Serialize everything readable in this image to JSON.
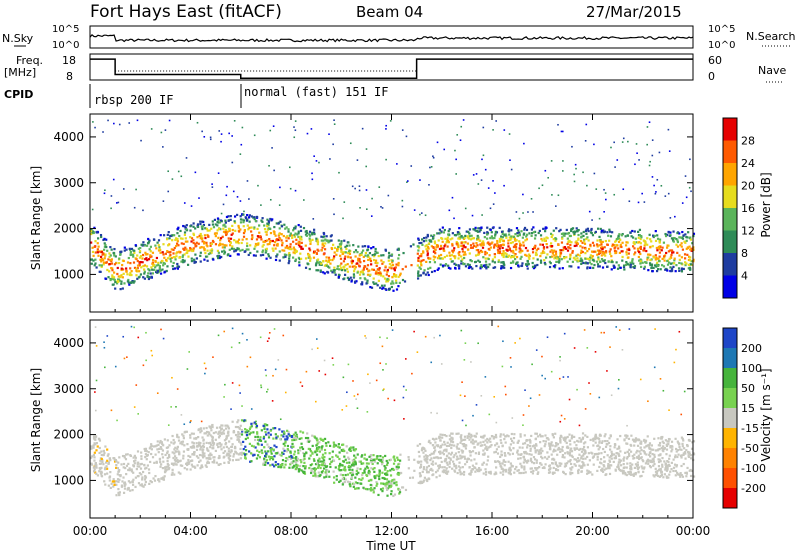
{
  "header": {
    "station": "Fort Hays East (fitACF)",
    "beam": "Beam 04",
    "date": "27/Mar/2015"
  },
  "noise_panel": {
    "left_label": "N.Sky",
    "right_label": "N.Search",
    "left_ticks": [
      "10^5",
      "10^0"
    ],
    "right_ticks": [
      "10^5",
      "10^0"
    ]
  },
  "freq_panel": {
    "left_label_1": "Freq.",
    "left_label_2": "[MHz]",
    "right_label": "Nave",
    "left_ticks": [
      "18",
      "8"
    ],
    "right_ticks": [
      "60",
      "0"
    ]
  },
  "cpid_panel": {
    "label": "CPID",
    "modes": [
      {
        "name": "rbsp 200 IF",
        "start_hour": 0
      },
      {
        "name": "normal (fast) 151 IF",
        "start_hour": 6
      }
    ]
  },
  "power_panel": {
    "ylabel": "Slant Range [km]",
    "colorbar_label": "Power [dB]",
    "colorbar_ticks": [
      "28",
      "24",
      "20",
      "16",
      "12",
      "8",
      "4"
    ],
    "colorbar_colors": [
      "#e60000",
      "#ff5a00",
      "#ffa500",
      "#e6dc1e",
      "#5ab45a",
      "#2e8b57",
      "#1e3ca0",
      "#0000e6"
    ]
  },
  "velocity_panel": {
    "ylabel": "Slant Range [km]",
    "colorbar_label": "Velocity [m s⁻¹]",
    "colorbar_ticks": [
      "200",
      "100",
      "50",
      "15",
      "-15",
      "-50",
      "-100",
      "-200"
    ],
    "colorbar_colors": [
      "#1e46c8",
      "#1e78b4",
      "#46b43c",
      "#78d250",
      "#c8c8c0",
      "#ffb400",
      "#ff8200",
      "#ff5000",
      "#e60000"
    ]
  },
  "xaxis": {
    "label": "Time UT",
    "ticks": [
      "00:00",
      "04:00",
      "08:00",
      "12:00",
      "16:00",
      "20:00",
      "00:00"
    ]
  },
  "yaxis_ticks": [
    "1000",
    "2000",
    "3000",
    "4000"
  ],
  "chart_data": {
    "type": "heatmap",
    "title": "Fort Hays East (fitACF) Beam 04 27/Mar/2015",
    "xlabel": "Time UT",
    "ylabel": "Slant Range [km]",
    "xlim_hours": [
      0,
      24
    ],
    "ylim_km": [
      180,
      4500
    ],
    "frequency_mhz": [
      {
        "from": 0,
        "to": 1,
        "value": 17.5
      },
      {
        "from": 1,
        "to": 6,
        "value": 10.5
      },
      {
        "from": 6,
        "to": 13,
        "value": 8.8
      },
      {
        "from": 13,
        "to": 24,
        "value": 17.5
      }
    ],
    "power_scatter_band_km": [
      {
        "hour": 0,
        "range": 1700
      },
      {
        "hour": 1,
        "range": 1100
      },
      {
        "hour": 4,
        "range": 1700
      },
      {
        "hour": 6,
        "range": 1900
      },
      {
        "hour": 8,
        "range": 1700
      },
      {
        "hour": 11,
        "range": 1200
      },
      {
        "hour": 12,
        "range": 1100
      },
      {
        "hour": 14,
        "range": 1600
      },
      {
        "hour": 20,
        "range": 1600
      },
      {
        "hour": 24,
        "range": 1500
      }
    ]
  }
}
